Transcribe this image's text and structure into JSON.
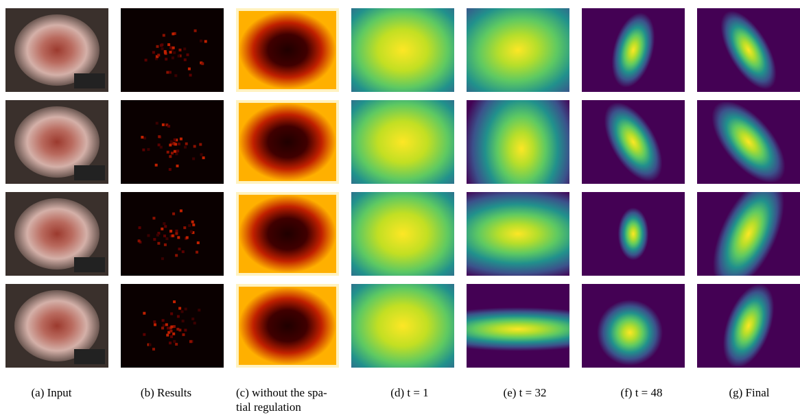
{
  "figure": {
    "captions": [
      [
        "(a) Input"
      ],
      [
        "(b) Results"
      ],
      [
        "(c) without the spa-",
        "tial regulation"
      ],
      [
        "(d) t = 1"
      ],
      [
        "(e) t = 32"
      ],
      [
        "(f) t = 48"
      ],
      [
        "(g) Final"
      ]
    ]
  }
}
